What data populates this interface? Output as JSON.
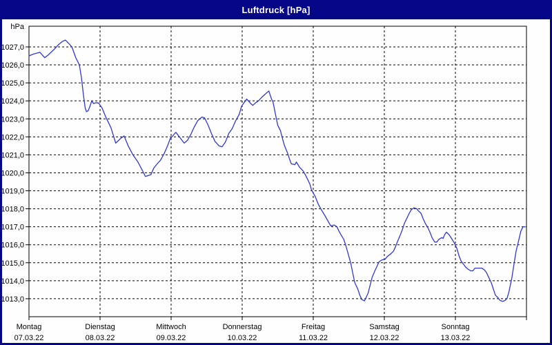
{
  "window": {
    "title": "Luftdruck [hPa]"
  },
  "colors": {
    "titlebar_bg": "#050588",
    "titlebar_text": "#FFFFFF",
    "window_border": "#050588",
    "content_bg": "#FDFEFD",
    "axis": "#000000",
    "grid": "#000000",
    "line": "#2E38C7"
  },
  "chart_data": {
    "type": "line",
    "title": "Luftdruck [hPa]",
    "unit_label": "hPa",
    "ylim": [
      1012.0,
      1028.15
    ],
    "xlim_hours": [
      0,
      168
    ],
    "grid": "dashed",
    "legend_position": "none",
    "y_ticks": [
      {
        "value": 1027,
        "label": "1027,0"
      },
      {
        "value": 1026,
        "label": "1026,0"
      },
      {
        "value": 1025,
        "label": "1025,0"
      },
      {
        "value": 1024,
        "label": "1024,0"
      },
      {
        "value": 1023,
        "label": "1023,0"
      },
      {
        "value": 1022,
        "label": "1022,0"
      },
      {
        "value": 1021,
        "label": "1021,0"
      },
      {
        "value": 1020,
        "label": "1020,0"
      },
      {
        "value": 1019,
        "label": "1019,0"
      },
      {
        "value": 1018,
        "label": "1018,0"
      },
      {
        "value": 1017,
        "label": "1017,0"
      },
      {
        "value": 1016,
        "label": "1016,0"
      },
      {
        "value": 1015,
        "label": "1015,0"
      },
      {
        "value": 1014,
        "label": "1014,0"
      },
      {
        "value": 1013,
        "label": "1013,0"
      }
    ],
    "days": [
      {
        "name": "Montag",
        "date": "07.03.22"
      },
      {
        "name": "Dienstag",
        "date": "08.03.22"
      },
      {
        "name": "Mittwoch",
        "date": "09.03.22"
      },
      {
        "name": "Donnerstag",
        "date": "10.03.22"
      },
      {
        "name": "Freitag",
        "date": "11.03.22"
      },
      {
        "name": "Samstag",
        "date": "12.03.22"
      },
      {
        "name": "Sonntag",
        "date": "13.03.22"
      }
    ],
    "series": [
      {
        "name": "Luftdruck",
        "color": "#2E38C7",
        "points": [
          [
            0,
            1026.5
          ],
          [
            1.5,
            1026.6
          ],
          [
            3.7,
            1026.7
          ],
          [
            5.3,
            1026.4
          ],
          [
            6.5,
            1026.55
          ],
          [
            8.4,
            1026.85
          ],
          [
            9.8,
            1027.1
          ],
          [
            11.2,
            1027.3
          ],
          [
            12.3,
            1027.38
          ],
          [
            13.4,
            1027.2
          ],
          [
            14.5,
            1027.0
          ],
          [
            15.8,
            1026.4
          ],
          [
            17,
            1026.0
          ],
          [
            17.7,
            1025.3
          ],
          [
            18.4,
            1024.3
          ],
          [
            19,
            1023.6
          ],
          [
            19.4,
            1023.4
          ],
          [
            20,
            1023.45
          ],
          [
            20.6,
            1023.7
          ],
          [
            21.2,
            1024.0
          ],
          [
            21.8,
            1023.85
          ],
          [
            22.6,
            1023.9
          ],
          [
            23.5,
            1023.88
          ],
          [
            24.7,
            1023.6
          ],
          [
            25.8,
            1023.15
          ],
          [
            27.7,
            1022.5
          ],
          [
            29.3,
            1021.65
          ],
          [
            30.9,
            1021.9
          ],
          [
            32.1,
            1022.05
          ],
          [
            33.5,
            1021.5
          ],
          [
            35.1,
            1021.0
          ],
          [
            36.8,
            1020.6
          ],
          [
            37.9,
            1020.25
          ],
          [
            39.3,
            1019.8
          ],
          [
            41.2,
            1019.9
          ],
          [
            42.1,
            1020.25
          ],
          [
            43.3,
            1020.5
          ],
          [
            44.4,
            1020.7
          ],
          [
            45.6,
            1021.05
          ],
          [
            46.8,
            1021.5
          ],
          [
            47.7,
            1021.9
          ],
          [
            49.6,
            1022.25
          ],
          [
            51,
            1021.95
          ],
          [
            52.4,
            1021.65
          ],
          [
            53.5,
            1021.8
          ],
          [
            54.7,
            1022.15
          ],
          [
            55.8,
            1022.55
          ],
          [
            57,
            1022.9
          ],
          [
            58.4,
            1023.1
          ],
          [
            59.3,
            1023.05
          ],
          [
            60.5,
            1022.65
          ],
          [
            61.7,
            1022.15
          ],
          [
            62.8,
            1021.75
          ],
          [
            64.2,
            1021.5
          ],
          [
            65.2,
            1021.45
          ],
          [
            66.3,
            1021.7
          ],
          [
            67.5,
            1022.2
          ],
          [
            68.6,
            1022.45
          ],
          [
            69.8,
            1022.9
          ],
          [
            71,
            1023.25
          ],
          [
            71.8,
            1023.7
          ],
          [
            73.5,
            1024.1
          ],
          [
            74.9,
            1023.85
          ],
          [
            75.6,
            1023.75
          ],
          [
            76.6,
            1023.9
          ],
          [
            77.5,
            1024.0
          ],
          [
            78.6,
            1024.2
          ],
          [
            79.6,
            1024.35
          ],
          [
            81,
            1024.55
          ],
          [
            81.9,
            1024.1
          ],
          [
            82.4,
            1023.95
          ],
          [
            83.3,
            1023.2
          ],
          [
            84,
            1022.65
          ],
          [
            84.9,
            1022.35
          ],
          [
            85.6,
            1021.9
          ],
          [
            86.3,
            1021.5
          ],
          [
            87.3,
            1021.1
          ],
          [
            88,
            1020.75
          ],
          [
            88.6,
            1020.5
          ],
          [
            89.8,
            1020.45
          ],
          [
            90.3,
            1020.6
          ],
          [
            91.4,
            1020.3
          ],
          [
            92.6,
            1020.1
          ],
          [
            93.3,
            1019.9
          ],
          [
            94.2,
            1019.6
          ],
          [
            94.9,
            1019.35
          ],
          [
            95.4,
            1019.05
          ],
          [
            96.6,
            1018.7
          ],
          [
            97.7,
            1018.25
          ],
          [
            98.9,
            1017.9
          ],
          [
            100,
            1017.6
          ],
          [
            101.2,
            1017.25
          ],
          [
            101.9,
            1017.05
          ],
          [
            103.1,
            1017.1
          ],
          [
            104,
            1017.0
          ],
          [
            104.7,
            1016.75
          ],
          [
            105.4,
            1016.55
          ],
          [
            106.3,
            1016.3
          ],
          [
            107,
            1015.95
          ],
          [
            107.7,
            1015.55
          ],
          [
            108.7,
            1014.95
          ],
          [
            109.3,
            1014.45
          ],
          [
            110,
            1013.9
          ],
          [
            111,
            1013.55
          ],
          [
            111.7,
            1013.2
          ],
          [
            112.4,
            1012.95
          ],
          [
            113.3,
            1012.88
          ],
          [
            114.5,
            1013.3
          ],
          [
            115.2,
            1013.75
          ],
          [
            115.9,
            1014.2
          ],
          [
            116.8,
            1014.55
          ],
          [
            117.5,
            1014.8
          ],
          [
            118.2,
            1015.05
          ],
          [
            119.1,
            1015.15
          ],
          [
            120.3,
            1015.2
          ],
          [
            121,
            1015.35
          ],
          [
            122.2,
            1015.5
          ],
          [
            123.1,
            1015.65
          ],
          [
            123.8,
            1015.9
          ],
          [
            124.5,
            1016.2
          ],
          [
            125.4,
            1016.55
          ],
          [
            126.1,
            1016.85
          ],
          [
            126.8,
            1017.2
          ],
          [
            127.7,
            1017.5
          ],
          [
            128.4,
            1017.75
          ],
          [
            129.1,
            1017.95
          ],
          [
            130,
            1018.05
          ],
          [
            131,
            1018.0
          ],
          [
            131.4,
            1017.9
          ],
          [
            132.4,
            1017.75
          ],
          [
            133.1,
            1017.45
          ],
          [
            133.8,
            1017.2
          ],
          [
            134.7,
            1016.95
          ],
          [
            135.4,
            1016.7
          ],
          [
            136.1,
            1016.4
          ],
          [
            137,
            1016.15
          ],
          [
            137.7,
            1016.15
          ],
          [
            138.4,
            1016.3
          ],
          [
            139.4,
            1016.4
          ],
          [
            139.8,
            1016.35
          ],
          [
            140.5,
            1016.6
          ],
          [
            141,
            1016.7
          ],
          [
            141.9,
            1016.55
          ],
          [
            142.9,
            1016.3
          ],
          [
            143.6,
            1016.1
          ],
          [
            144.5,
            1015.8
          ],
          [
            145.2,
            1015.4
          ],
          [
            145.9,
            1015.1
          ],
          [
            146.8,
            1014.9
          ],
          [
            147.5,
            1014.75
          ],
          [
            148.2,
            1014.65
          ],
          [
            149.2,
            1014.55
          ],
          [
            149.9,
            1014.55
          ],
          [
            150.6,
            1014.7
          ],
          [
            151.5,
            1014.7
          ],
          [
            152.9,
            1014.7
          ],
          [
            153.8,
            1014.6
          ],
          [
            154.5,
            1014.45
          ],
          [
            155.2,
            1014.2
          ],
          [
            156.1,
            1013.9
          ],
          [
            156.8,
            1013.55
          ],
          [
            157.5,
            1013.2
          ],
          [
            158.4,
            1013.05
          ],
          [
            159.1,
            1012.9
          ],
          [
            160,
            1012.85
          ],
          [
            160.7,
            1012.9
          ],
          [
            161.4,
            1013.0
          ],
          [
            162.1,
            1013.4
          ],
          [
            163.1,
            1014.2
          ],
          [
            163.8,
            1014.95
          ],
          [
            164.5,
            1015.65
          ],
          [
            165.4,
            1016.25
          ],
          [
            166.1,
            1016.75
          ],
          [
            166.8,
            1017.0
          ],
          [
            167.5,
            1017.0
          ]
        ]
      }
    ]
  }
}
